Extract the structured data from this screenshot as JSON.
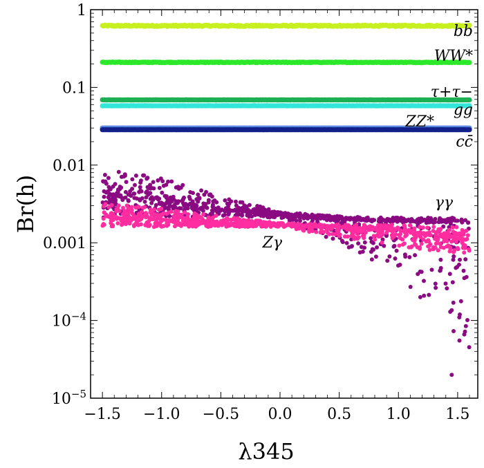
{
  "chart_data": {
    "type": "scatter",
    "title": "",
    "xlabel": "λ345",
    "ylabel": "Br(h)",
    "xlim": [
      -1.6,
      1.67
    ],
    "ylim_log10": [
      -5,
      0
    ],
    "yscale": "log",
    "x_ticks": [
      -1.5,
      -1.0,
      -0.5,
      0.0,
      0.5,
      1.0,
      1.5
    ],
    "x_tick_labels": [
      "−1.5",
      "−1.0",
      "−0.5",
      "0.0",
      "0.5",
      "1.0",
      "1.5"
    ],
    "y_ticks": [
      {
        "value": 1,
        "label": "1"
      },
      {
        "value": 0.1,
        "label": "0.1"
      },
      {
        "value": 0.01,
        "label": "0.01"
      },
      {
        "value": 0.001,
        "label": "0.001"
      },
      {
        "value": 0.0001,
        "label": "10",
        "sup": "−4"
      },
      {
        "value": 1e-05,
        "label": "10",
        "sup": "−5"
      }
    ],
    "x_range_data": [
      -1.5,
      1.6
    ],
    "series": [
      {
        "name": "bb̄",
        "label": "bb̄",
        "color": "#c8f020",
        "value": 0.62,
        "spread": 0.02
      },
      {
        "name": "WW*",
        "label": "WW*",
        "color": "#2de82a",
        "value": 0.21,
        "spread": 0.01
      },
      {
        "name": "τ+τ−",
        "label": "τ+τ−",
        "color": "#1db055",
        "value": 0.069,
        "spread": 0.002
      },
      {
        "name": "gg",
        "label": "gg",
        "color": "#33e6da",
        "value": 0.058,
        "spread": 0.002
      },
      {
        "name": "ZZ*",
        "label": "ZZ*",
        "color": "#5a88e0",
        "value": 0.03,
        "spread": 0.001
      },
      {
        "name": "cc̄",
        "label": "cc̄",
        "color": "#13208a",
        "value": 0.0285,
        "spread": 0.001
      },
      {
        "name": "γγ",
        "label": "γγ",
        "color": "#8a0a82",
        "trend": [
          [
            -1.5,
            0.0042
          ],
          [
            -1.0,
            0.0035
          ],
          [
            -0.5,
            0.0027
          ],
          [
            0.0,
            0.0023
          ],
          [
            0.5,
            0.002
          ],
          [
            1.0,
            0.0019
          ],
          [
            1.6,
            0.0018
          ]
        ],
        "upper": [
          [
            -1.5,
            0.009
          ],
          [
            -1.0,
            0.007
          ],
          [
            -0.5,
            0.004
          ],
          [
            0.0,
            0.0025
          ],
          [
            0.5,
            0.0022
          ],
          [
            1.0,
            0.0021
          ],
          [
            1.6,
            0.0021
          ]
        ],
        "lower": [
          [
            -1.5,
            0.002
          ],
          [
            -1.0,
            0.0021
          ],
          [
            -0.5,
            0.0022
          ],
          [
            0.0,
            0.0021
          ],
          [
            0.5,
            0.001
          ],
          [
            1.0,
            0.00035
          ],
          [
            1.6,
            3e-05
          ]
        ],
        "min_point": [
          1.45,
          2e-05
        ]
      },
      {
        "name": "Zγ",
        "label": "Zγ",
        "color": "#ff2da0",
        "trend": [
          [
            -1.5,
            0.0022
          ],
          [
            -1.0,
            0.002
          ],
          [
            -0.5,
            0.0018
          ],
          [
            0.0,
            0.0017
          ],
          [
            0.5,
            0.0016
          ],
          [
            1.0,
            0.0014
          ],
          [
            1.6,
            0.0011
          ]
        ],
        "upper": [
          [
            -1.5,
            0.0033
          ],
          [
            -1.0,
            0.0028
          ],
          [
            -0.5,
            0.0022
          ],
          [
            0.0,
            0.0018
          ],
          [
            0.5,
            0.0017
          ],
          [
            1.0,
            0.0017
          ],
          [
            1.6,
            0.0016
          ]
        ],
        "lower": [
          [
            -1.5,
            0.0016
          ],
          [
            -1.0,
            0.0016
          ],
          [
            -0.5,
            0.0016
          ],
          [
            0.0,
            0.0016
          ],
          [
            0.5,
            0.0012
          ],
          [
            1.0,
            0.0009
          ],
          [
            1.6,
            0.0007
          ]
        ]
      }
    ]
  }
}
